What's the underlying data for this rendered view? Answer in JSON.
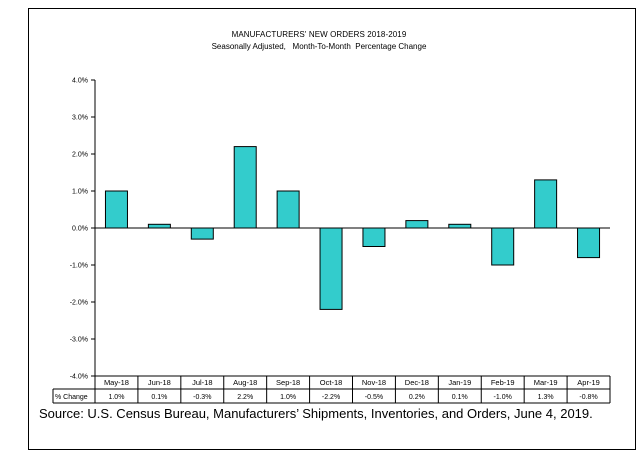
{
  "chart_data": {
    "type": "bar",
    "title": "MANUFACTURERS'  NEW ORDERS 2018-2019",
    "subtitle": "Seasonally Adjusted,   Month-To-Month  Percentage Change",
    "categories": [
      "May-18",
      "Jun-18",
      "Jul-18",
      "Aug-18",
      "Sep-18",
      "Oct-18",
      "Nov-18",
      "Dec-18",
      "Jan-19",
      "Feb-19",
      "Mar-19",
      "Apr-19"
    ],
    "values": [
      1.0,
      0.1,
      -0.3,
      2.2,
      1.0,
      -2.2,
      -0.5,
      0.2,
      0.1,
      -1.0,
      1.3,
      -0.8
    ],
    "value_labels": [
      "1.0%",
      "0.1%",
      "-0.3%",
      "2.2%",
      "1.0%",
      "-2.2%",
      "-0.5%",
      "0.2%",
      "0.1%",
      "-1.0%",
      "1.3%",
      "-0.8%"
    ],
    "ylim": [
      -4,
      4
    ],
    "yticks": [
      "4.0%",
      "3.0%",
      "2.0%",
      "1.0%",
      "0.0%",
      "-1.0%",
      "-2.0%",
      "-3.0%",
      "-4.0%"
    ],
    "table_row_label": "% Change",
    "bar_color": "#33CCCC",
    "grid": false
  },
  "source_note": "Source: U.S. Census Bureau, Manufacturers’ Shipments, Inventories, and Orders, June 4, 2019."
}
